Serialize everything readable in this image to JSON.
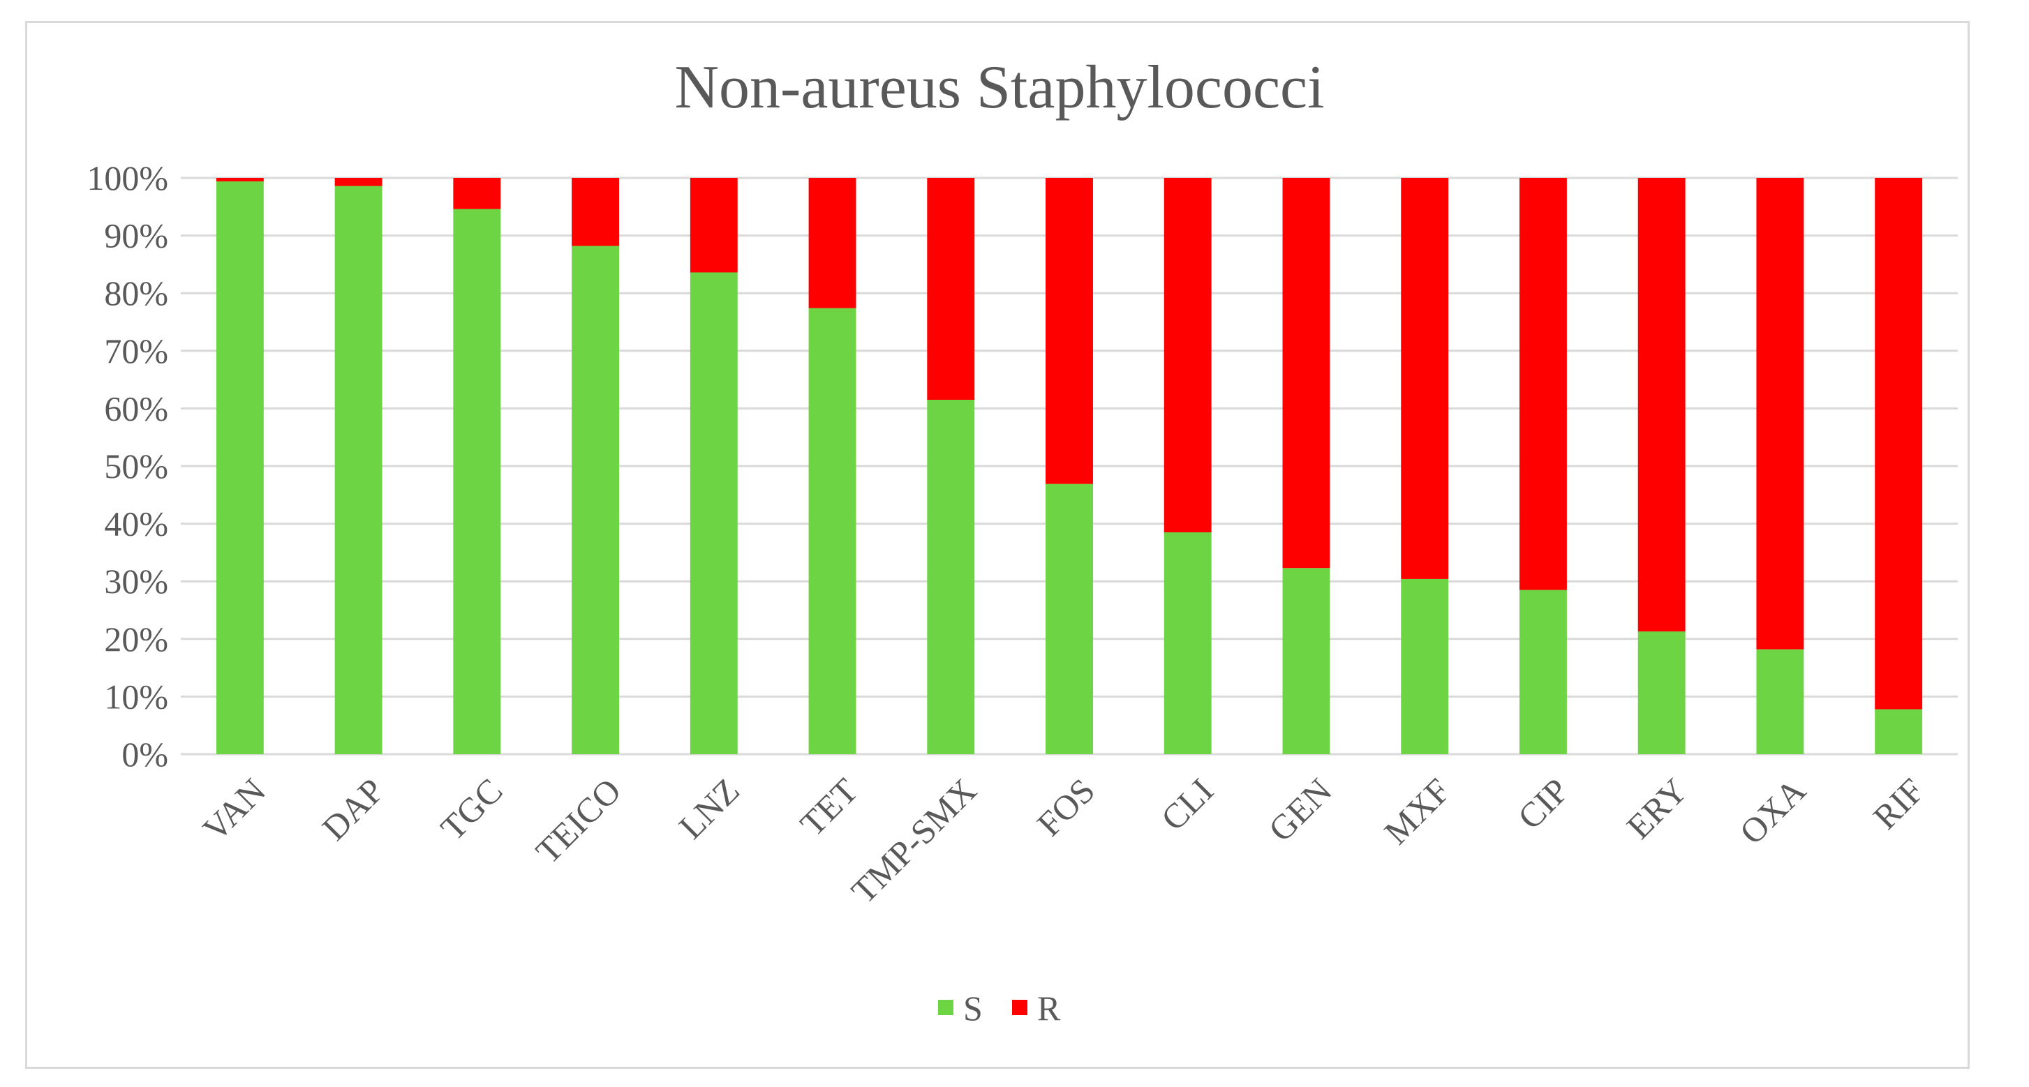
{
  "chart_data": {
    "type": "bar",
    "stacked": true,
    "percent_stacked": true,
    "title": "Non-aureus Staphylococci",
    "xlabel": "",
    "ylabel": "",
    "ylim": [
      0,
      100
    ],
    "y_ticks": [
      "0%",
      "10%",
      "20%",
      "30%",
      "40%",
      "50%",
      "60%",
      "70%",
      "80%",
      "90%",
      "100%"
    ],
    "grid": true,
    "legend_position": "bottom",
    "categories": [
      "VAN",
      "DAP",
      "TGC",
      "TEICO",
      "LNZ",
      "TET",
      "TMP-SMX",
      "FOS",
      "CLI",
      "GEN",
      "MXF",
      "CIP",
      "ERY",
      "OXA",
      "RIF"
    ],
    "series": [
      {
        "name": "S",
        "color": "#6dd443",
        "values": [
          99.4,
          98.6,
          94.6,
          88.2,
          83.6,
          77.4,
          61.5,
          46.9,
          38.5,
          32.3,
          30.4,
          28.5,
          21.3,
          18.2,
          7.8
        ]
      },
      {
        "name": "R",
        "color": "#ff0000",
        "values": [
          0.6,
          1.4,
          5.4,
          11.8,
          16.4,
          22.6,
          38.5,
          53.1,
          61.5,
          67.7,
          69.6,
          71.5,
          78.7,
          81.8,
          92.2
        ]
      }
    ],
    "colors": {
      "gridline": "#d9d9d9",
      "axis": "#d9d9d9",
      "text": "#595959"
    }
  }
}
